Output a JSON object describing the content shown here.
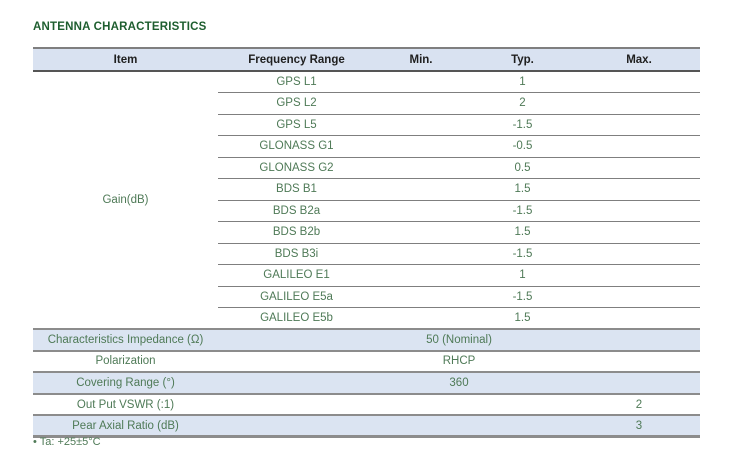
{
  "title": "ANTENNA CHARACTERISTICS",
  "colors": {
    "title_green": "#1e5e2f",
    "text_green": "#4f7a57",
    "header_bg": "#d9e2f1",
    "shaded_row_bg": "#dbe4f2",
    "border_gray": "#7f7f7f"
  },
  "table": {
    "headers": [
      "Item",
      "Frequency Range",
      "Min.",
      "Typ.",
      "Max."
    ],
    "gain": {
      "item": "Gain(dB)",
      "rows": [
        {
          "freq": "GPS L1",
          "min": "",
          "typ": "1",
          "max": ""
        },
        {
          "freq": "GPS L2",
          "min": "",
          "typ": "2",
          "max": ""
        },
        {
          "freq": "GPS L5",
          "min": "",
          "typ": "-1.5",
          "max": ""
        },
        {
          "freq": "GLONASS G1",
          "min": "",
          "typ": "-0.5",
          "max": ""
        },
        {
          "freq": "GLONASS G2",
          "min": "",
          "typ": "0.5",
          "max": ""
        },
        {
          "freq": "BDS B1",
          "min": "",
          "typ": "1.5",
          "max": ""
        },
        {
          "freq": "BDS B2a",
          "min": "",
          "typ": "-1.5",
          "max": ""
        },
        {
          "freq": "BDS B2b",
          "min": "",
          "typ": "1.5",
          "max": ""
        },
        {
          "freq": "BDS B3i",
          "min": "",
          "typ": "-1.5",
          "max": ""
        },
        {
          "freq": "GALILEO E1",
          "min": "",
          "typ": "1",
          "max": ""
        },
        {
          "freq": "GALILEO E5a",
          "min": "",
          "typ": "-1.5",
          "max": ""
        },
        {
          "freq": "GALILEO E5b",
          "min": "",
          "typ": "1.5",
          "max": ""
        }
      ]
    },
    "spec_rows": [
      {
        "item": "Characteristics Impedance (Ω)",
        "value": "50 (Nominal)",
        "value_col": "typ",
        "shaded": true
      },
      {
        "item": "Polarization",
        "value": "RHCP",
        "value_col": "typ",
        "shaded": false
      },
      {
        "item": "Covering Range (°)",
        "value": "360",
        "value_col": "typ",
        "shaded": true
      },
      {
        "item": "Out Put VSWR  (:1)",
        "value": "2",
        "value_col": "max",
        "shaded": false
      },
      {
        "item": "Pear Axial Ratio (dB)",
        "value": "3",
        "value_col": "max",
        "shaded": true
      }
    ]
  },
  "footnote": "• Ta: +25±5°C"
}
